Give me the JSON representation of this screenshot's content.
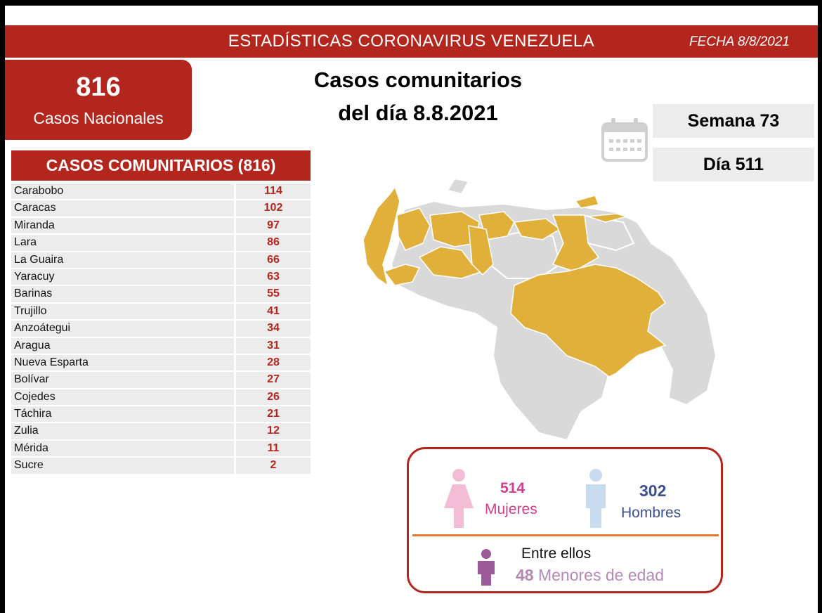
{
  "header": {
    "title": "ESTADÍSTICAS CORONAVIRUS VENEZUELA",
    "date": "FECHA 8/8/2021"
  },
  "national": {
    "count": "816",
    "label": "Casos Nacionales"
  },
  "headline": {
    "line1": "Casos comunitarios",
    "line2": "del día 8.8.2021"
  },
  "period": {
    "week": "Semana 73",
    "day": "Día 511"
  },
  "table": {
    "title": "CASOS COMUNITARIOS (816)",
    "rows": [
      {
        "state": "Carabobo",
        "cases": "114"
      },
      {
        "state": "Caracas",
        "cases": "102"
      },
      {
        "state": "Miranda",
        "cases": "97"
      },
      {
        "state": "Lara",
        "cases": "86"
      },
      {
        "state": "La Guaira",
        "cases": "66"
      },
      {
        "state": "Yaracuy",
        "cases": "63"
      },
      {
        "state": "Barinas",
        "cases": "55"
      },
      {
        "state": "Trujillo",
        "cases": "41"
      },
      {
        "state": "Anzoátegui",
        "cases": "34"
      },
      {
        "state": "Aragua",
        "cases": "31"
      },
      {
        "state": "Nueva Esparta",
        "cases": "28"
      },
      {
        "state": "Bolívar",
        "cases": "27"
      },
      {
        "state": "Cojedes",
        "cases": "26"
      },
      {
        "state": "Táchira",
        "cases": "21"
      },
      {
        "state": "Zulia",
        "cases": "12"
      },
      {
        "state": "Mérida",
        "cases": "11"
      },
      {
        "state": "Sucre",
        "cases": "2"
      }
    ]
  },
  "gender": {
    "women_count": "514",
    "women_label": "Mujeres",
    "men_count": "302",
    "men_label": "Hombres",
    "minors_intro": "Entre ellos",
    "minors_count": "48",
    "minors_label": "Menores de edad"
  },
  "colors": {
    "brand_red": "#b3261e",
    "affected": "#e0b03a",
    "unaffected": "#d9d9d9",
    "women": "#d33e8d",
    "men": "#3d4f8f",
    "minors": "#9b5a98"
  }
}
